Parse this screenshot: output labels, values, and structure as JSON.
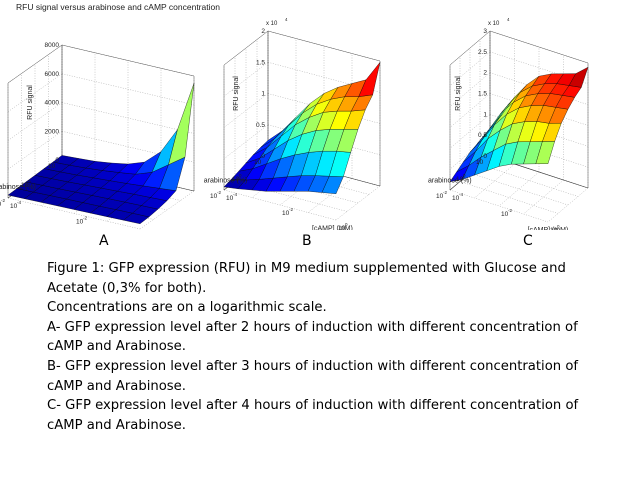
{
  "figure_title": "RFU signal versus arabinose and cAMP concentration",
  "colors": {
    "low": "#00008f",
    "mid": "#40ffbf",
    "high": "#ffcf00",
    "top": "#8f0000"
  },
  "chart_data": [
    {
      "type": "surface",
      "panel": "A",
      "title": "RFU signal versus arabinose and cAMP concentration",
      "zlabel": "RFU signal",
      "xlabel": "[cAMP] (mM)",
      "ylabel": "arabinose (%)",
      "zlim": [
        0,
        8000
      ],
      "z_ticks": [
        "0",
        "2000",
        "4000",
        "6000",
        "8000"
      ],
      "z_multiplier": "",
      "camp_ticks": [
        "10",
        "10",
        "10"
      ],
      "camp_tick_exps": [
        "-4",
        "-2",
        "0"
      ],
      "arabinose_ticks": [
        "10",
        "10",
        "10"
      ],
      "arabinose_tick_exps": [
        "-2",
        "0",
        ""
      ],
      "camp_log10": [
        -4,
        -3.5,
        -3,
        -2.5,
        -2,
        -1.5,
        -1,
        -0.5,
        0
      ],
      "arabinose_log10": [
        -2,
        -1.5,
        -1,
        -0.5,
        0,
        0.5,
        1
      ],
      "z": [
        [
          200,
          220,
          240,
          260,
          280,
          300,
          320,
          340,
          360
        ],
        [
          220,
          240,
          270,
          300,
          320,
          340,
          370,
          390,
          400
        ],
        [
          240,
          270,
          300,
          340,
          380,
          420,
          450,
          480,
          500
        ],
        [
          260,
          300,
          340,
          400,
          450,
          500,
          560,
          600,
          650
        ],
        [
          280,
          320,
          380,
          450,
          520,
          600,
          700,
          800,
          900
        ],
        [
          300,
          350,
          420,
          520,
          650,
          800,
          1200,
          2000,
          2800
        ],
        [
          320,
          380,
          450,
          600,
          800,
          1200,
          2200,
          4000,
          7500
        ]
      ]
    },
    {
      "type": "surface",
      "panel": "B",
      "title": "",
      "zlabel": "RFU signal",
      "xlabel": "[cAMP] (mM)",
      "ylabel": "arabinose (%)",
      "zlim": [
        0,
        20000
      ],
      "z_ticks": [
        "0",
        "0.5",
        "1",
        "1.5",
        "2"
      ],
      "z_multiplier": "x 10",
      "z_multiplier_exp": "4",
      "camp_ticks": [
        "10",
        "10",
        "10"
      ],
      "camp_tick_exps": [
        "-4",
        "-2",
        "0"
      ],
      "arabinose_ticks": [
        "10",
        "10",
        "10"
      ],
      "arabinose_tick_exps": [
        "-2",
        "0",
        ""
      ],
      "camp_log10": [
        -4,
        -3.5,
        -3,
        -2.5,
        -2,
        -1.5,
        -1,
        -0.5,
        0
      ],
      "arabinose_log10": [
        -2,
        -1.5,
        -1,
        -0.5,
        0,
        0.5,
        1
      ],
      "z": [
        [
          500,
          800,
          1200,
          1600,
          2200,
          2800,
          3400,
          3800,
          4200
        ],
        [
          800,
          1300,
          2000,
          2800,
          3600,
          4400,
          5000,
          5500,
          6000
        ],
        [
          1200,
          2200,
          3600,
          5000,
          6200,
          7200,
          8000,
          8600,
          9000
        ],
        [
          1600,
          3000,
          5000,
          7000,
          8600,
          9800,
          10600,
          11200,
          11800
        ],
        [
          2000,
          3800,
          6200,
          8600,
          10400,
          11800,
          12600,
          13200,
          14000
        ],
        [
          2300,
          4300,
          7000,
          9600,
          11600,
          13000,
          14000,
          14600,
          15500
        ],
        [
          2500,
          4600,
          7400,
          10200,
          12400,
          14000,
          15200,
          16400,
          19800
        ]
      ]
    },
    {
      "type": "surface",
      "panel": "C",
      "title": "",
      "zlabel": "RFU signal",
      "xlabel": "[cAMP] (mM)",
      "ylabel": "arabinose (%)",
      "zlim": [
        0,
        30000
      ],
      "z_ticks": [
        "0",
        "0.5",
        "1",
        "1.5",
        "2",
        "2.5",
        "3"
      ],
      "z_multiplier": "x 10",
      "z_multiplier_exp": "4",
      "camp_ticks": [
        "10",
        "10",
        "10"
      ],
      "camp_tick_exps": [
        "-4",
        "-2",
        "0"
      ],
      "arabinose_ticks": [
        "10",
        "10",
        "10"
      ],
      "arabinose_tick_exps": [
        "-2",
        "0",
        ""
      ],
      "camp_log10": [
        -4,
        -3.5,
        -3,
        -2.5,
        -2,
        -1.5,
        -1,
        -0.5,
        0
      ],
      "arabinose_log10": [
        -2,
        -1.5,
        -1,
        -0.5,
        0,
        0.5,
        1
      ],
      "z": [
        [
          2000,
          3500,
          5500,
          7500,
          9500,
          11000,
          12000,
          13000,
          14000
        ],
        [
          3000,
          5500,
          8500,
          11000,
          13500,
          15000,
          16000,
          17000,
          18000
        ],
        [
          4000,
          7500,
          11500,
          14500,
          17000,
          18500,
          19500,
          20000,
          21000
        ],
        [
          5000,
          9000,
          13500,
          17000,
          19500,
          21000,
          22000,
          22500,
          23000
        ],
        [
          5500,
          10000,
          15000,
          18500,
          21000,
          22500,
          23500,
          24000,
          24500
        ],
        [
          6000,
          10500,
          15500,
          19500,
          22000,
          23500,
          24500,
          25000,
          25500
        ],
        [
          6200,
          11000,
          16000,
          20000,
          23000,
          24500,
          25500,
          26500,
          29000
        ]
      ]
    }
  ],
  "panel_labels": [
    "A",
    "B",
    "C"
  ],
  "caption": {
    "line1": "Figure 1: GFP expression (RFU) in M9 medium supplemented with Glucose and",
    "line2": "Acetate (0,3% for both).",
    "line3": "Concentrations are on a logarithmic scale.",
    "line4": "A- GFP expression level after 2 hours of induction with different concentration of",
    "line5": "cAMP and Arabinose.",
    "line6": "B- GFP expression level after 3 hours of induction with different concentration of",
    "line7": "cAMP and Arabinose.",
    "line8": "C- GFP expression level after 4 hours of induction with different concentration of",
    "line9": "cAMP and Arabinose."
  }
}
